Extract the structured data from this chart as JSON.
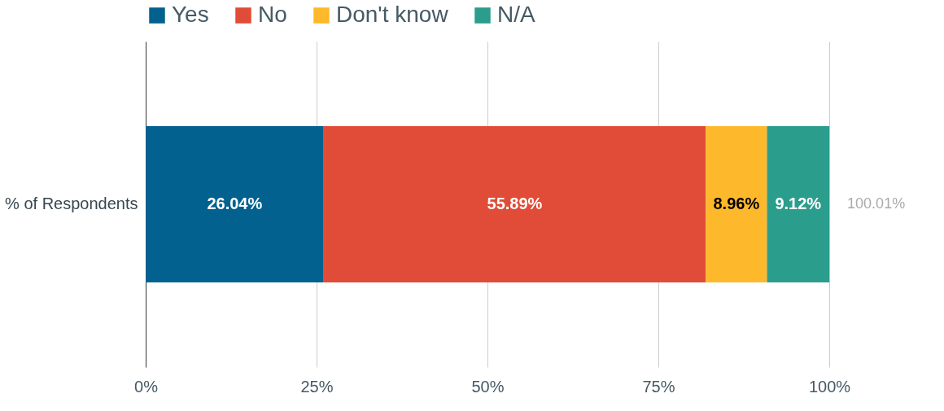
{
  "chart_data": {
    "type": "bar",
    "orientation": "horizontal",
    "stacked": true,
    "categories": [
      "% of Respondents"
    ],
    "series": [
      {
        "name": "Yes",
        "color": "#02618f",
        "values": [
          26.04
        ],
        "value_labels": [
          "26.04%"
        ]
      },
      {
        "name": "No",
        "color": "#e04c37",
        "values": [
          55.89
        ],
        "value_labels": [
          "55.89%"
        ]
      },
      {
        "name": "Don't know",
        "color": "#fdb92b",
        "values": [
          8.96
        ],
        "value_labels": [
          "8.96%"
        ]
      },
      {
        "name": "N/A",
        "color": "#2a9d8c",
        "values": [
          9.12
        ],
        "value_labels": [
          "9.12%"
        ]
      }
    ],
    "totals": [
      "100.01%"
    ],
    "xlim": [
      0,
      100
    ],
    "xticks": [
      {
        "value": 0,
        "label": "0%"
      },
      {
        "value": 25,
        "label": "25%"
      },
      {
        "value": 50,
        "label": "50%"
      },
      {
        "value": 75,
        "label": "75%"
      },
      {
        "value": 100,
        "label": "100%"
      }
    ],
    "grid": "x",
    "legend": "top"
  }
}
